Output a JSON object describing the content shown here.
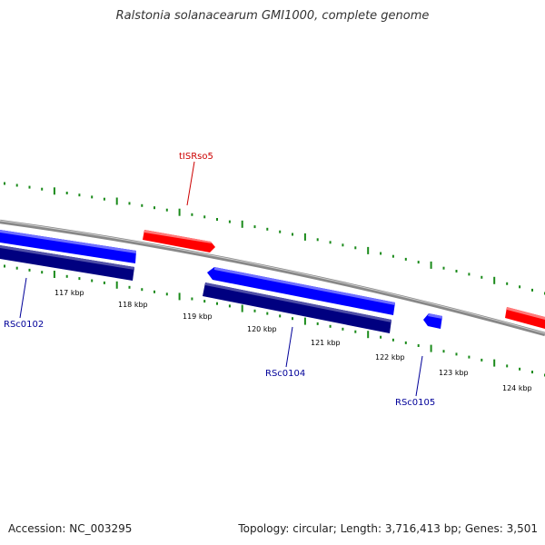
{
  "title": "Ralstonia solanacearum GMI1000, complete genome",
  "footer": {
    "accession_label": "Accession:",
    "accession": "NC_003295",
    "topology_label": "Topology:",
    "topology": "circular",
    "length_label": "Length:",
    "length": "3,716,413 bp",
    "genes_label": "Genes:",
    "genes": "3,501"
  },
  "colors": {
    "backbone": "#888888",
    "scale_ticks": "#1a8a1a",
    "forward_feature": "#ff0000",
    "forward_feature_label": "#cc0000",
    "reverse_gene": "#0000ff",
    "reverse_cds": "#000080",
    "gene_label": "#000099",
    "tick_label": "#000000"
  },
  "scale_ticks": [
    "117 kbp",
    "118 kbp",
    "119 kbp",
    "120 kbp",
    "121 kbp",
    "122 kbp",
    "123 kbp",
    "124 kbp"
  ],
  "features": [
    {
      "label": "tISRso5",
      "strand": "forward",
      "type": "mobile element"
    },
    {
      "label": "RSc0102",
      "strand": "reverse",
      "type": "gene"
    },
    {
      "label": "RSc0104",
      "strand": "reverse",
      "type": "gene"
    },
    {
      "label": "RSc0105",
      "strand": "reverse",
      "type": "gene"
    }
  ]
}
